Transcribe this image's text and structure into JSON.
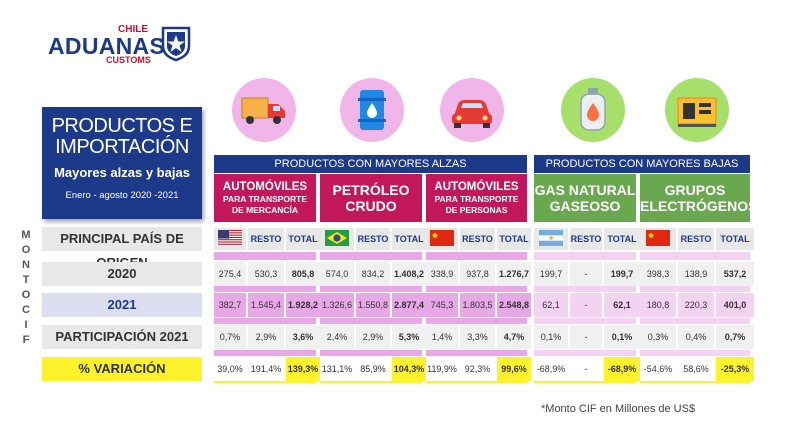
{
  "logo": {
    "top": "CHILE",
    "main": "ADUANAS",
    "sub": "CUSTOMS"
  },
  "title": {
    "line1": "PRODUCTOS E",
    "line2": "IMPORTACIÓN",
    "subtitle": "Mayores alzas y bajas",
    "period": "Enero - agosto 2020 -2021"
  },
  "vertical_label": [
    "M",
    "O",
    "N",
    "T",
    "O",
    "",
    "C",
    "I",
    "F"
  ],
  "sections": {
    "alzas": "PRODUCTOS CON MAYORES ALZAS",
    "bajas": "PRODUCTOS CON MAYORES BAJAS"
  },
  "products": [
    {
      "name_l1": "AUTOMÓVILES",
      "name_l2": "PARA TRANSPORTE",
      "name_l3": "DE MERCANCÍA",
      "icon": "truck-icon",
      "flag": "usa-flag"
    },
    {
      "name_l1": "PETRÓLEO",
      "name_l2": "CRUDO",
      "icon": "oil-barrel-icon",
      "flag": "brazil-flag"
    },
    {
      "name_l1": "AUTOMÓVILES",
      "name_l2": "PARA TRANSPORTE",
      "name_l3": "DE PERSONAS",
      "icon": "car-icon",
      "flag": "china-flag"
    },
    {
      "name_l1": "GAS NATURAL",
      "name_l2": "GASEOSO",
      "icon": "gas-tank-icon",
      "flag": "argentina-flag"
    },
    {
      "name_l1": "GRUPOS",
      "name_l2": "ELECTRÓGENOS",
      "icon": "generator-icon",
      "flag": "china-flag"
    }
  ],
  "row_labels": {
    "origin": "PRINCIPAL PAÍS DE ORIGEN",
    "y2020": "2020",
    "y2021": "2021",
    "share": "PARTICIPACIÓN 2021",
    "variation": "% VARIACIÓN"
  },
  "col_labels": {
    "resto": "RESTO",
    "total": "TOTAL"
  },
  "table": {
    "y2020": [
      [
        "275,4",
        "530,3",
        "805,8"
      ],
      [
        "574,0",
        "834,2",
        "1.408,2"
      ],
      [
        "338,9",
        "937,8",
        "1.276,7"
      ],
      [
        "199,7",
        "-",
        "199,7"
      ],
      [
        "398,3",
        "138,9",
        "537,2"
      ]
    ],
    "y2021": [
      [
        "382,7",
        "1.545,4",
        "1.928,2"
      ],
      [
        "1.326,6",
        "1.550,8",
        "2.877,4"
      ],
      [
        "745,3",
        "1.803,5",
        "2.548,8"
      ],
      [
        "62,1",
        "-",
        "62,1"
      ],
      [
        "180,8",
        "220,3",
        "401,0"
      ]
    ],
    "share": [
      [
        "0,7%",
        "2,9%",
        "3,6%"
      ],
      [
        "2,4%",
        "2,9%",
        "5,3%"
      ],
      [
        "1,4%",
        "3,3%",
        "4,7%"
      ],
      [
        "0,1%",
        "-",
        "0,1%"
      ],
      [
        "0,3%",
        "0,4%",
        "0,7%"
      ]
    ],
    "variation": [
      [
        "39,0%",
        "191,4%",
        "139,3%"
      ],
      [
        "131,1%",
        "85,9%",
        "104,3%"
      ],
      [
        "119,9%",
        "92,3%",
        "99,6%"
      ],
      [
        "-68,9%",
        "-",
        "-68,9%"
      ],
      [
        "-54,6%",
        "58,6%",
        "-25,3%"
      ]
    ]
  },
  "footnote": "*Monto CIF en Millones de US$",
  "colors": {
    "navy": "#1d3a8a",
    "magenta": "#c2185b",
    "green": "#6aa84f",
    "pink": "#e8a7e6",
    "yellow": "#fdf22c"
  }
}
